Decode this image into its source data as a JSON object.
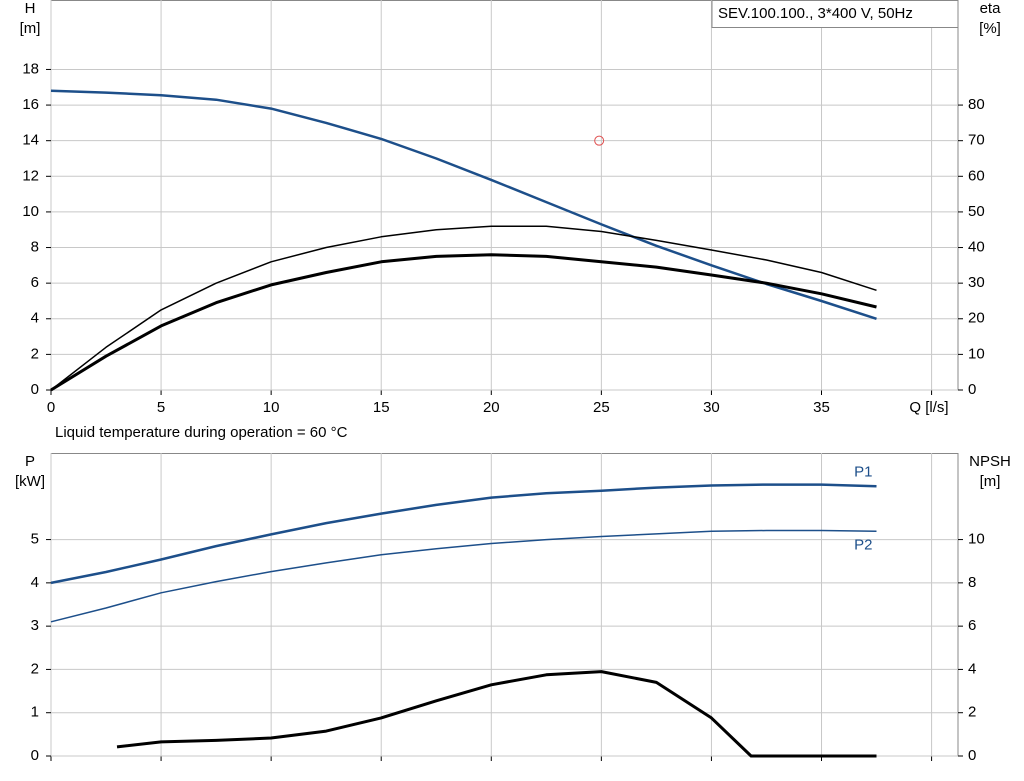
{
  "chart_data": [
    {
      "type": "line",
      "title": "SEV.100.100., 3*400 V, 50Hz",
      "x_label": "Q [l/s]",
      "y_label": "H",
      "y_unit": "[m]",
      "y2_label": "eta",
      "y2_unit": "[%]",
      "note": "Liquid temperature during operation = 60 °C",
      "x": [
        0,
        2.5,
        5,
        7.5,
        10,
        12.5,
        15,
        17.5,
        20,
        22.5,
        25,
        27.5,
        30,
        32.5,
        35,
        37.5
      ],
      "xlim": [
        0,
        41.2
      ],
      "xticks": [
        0,
        5,
        10,
        15,
        20,
        25,
        30,
        35,
        40
      ],
      "xtick_labels_shown": [
        0,
        5,
        10,
        15,
        20,
        25,
        30,
        35
      ],
      "ylim": [
        0,
        21.9
      ],
      "yticks": [
        0,
        2,
        4,
        6,
        8,
        10,
        12,
        14,
        16,
        18
      ],
      "y2lim": [
        0,
        109.5
      ],
      "y2ticks": [
        0,
        10,
        20,
        30,
        40,
        50,
        60,
        70,
        80
      ],
      "grid": true,
      "series": [
        {
          "color": "#1d4f8a",
          "line_width": 2.5,
          "values": [
            16.8,
            16.7,
            16.55,
            16.3,
            15.8,
            15.0,
            14.1,
            13.0,
            11.8,
            10.55,
            9.3,
            8.1,
            7.0,
            5.95,
            5.0,
            4.0
          ]
        },
        {
          "color": "#000000",
          "line_width": 1.5,
          "axis": "y2",
          "values": [
            0,
            12,
            22.5,
            30,
            36,
            40,
            43,
            45,
            46,
            46,
            44.5,
            42,
            39.3,
            36.5,
            33,
            28
          ]
        },
        {
          "color": "#000000",
          "line_width": 3,
          "axis": "y2",
          "values": [
            0,
            9.5,
            18,
            24.5,
            29.5,
            33,
            36,
            37.5,
            38,
            37.5,
            36,
            34.5,
            32.3,
            30,
            27,
            23.3
          ]
        }
      ],
      "marker": {
        "x": 24.9,
        "y": 14,
        "color": "#e05050"
      }
    },
    {
      "type": "line",
      "y_label": "P",
      "y_unit": "[kW]",
      "y2_label": "NPSH",
      "y2_unit": "[m]",
      "x": [
        0,
        2.5,
        5,
        7.5,
        10,
        12.5,
        15,
        17.5,
        20,
        22.5,
        25,
        27.5,
        30,
        32.5,
        35,
        37.5
      ],
      "xlim": [
        0,
        41.2
      ],
      "xticks": [
        0,
        5,
        10,
        15,
        20,
        25,
        30,
        35,
        40
      ],
      "ylim": [
        0,
        7
      ],
      "yticks": [
        0,
        1,
        2,
        3,
        4,
        5
      ],
      "y2lim": [
        0,
        14
      ],
      "y2ticks": [
        0,
        2,
        4,
        6,
        8,
        10
      ],
      "grid": true,
      "series": [
        {
          "name": "P1",
          "label_position": "above",
          "color": "#1d4f8a",
          "line_width": 2.5,
          "values": [
            4.0,
            4.25,
            4.54,
            4.85,
            5.12,
            5.38,
            5.6,
            5.8,
            5.97,
            6.07,
            6.13,
            6.2,
            6.25,
            6.27,
            6.27,
            6.23
          ]
        },
        {
          "name": "P2",
          "label_position": "below",
          "color": "#1d4f8a",
          "line_width": 1.5,
          "values": [
            3.1,
            3.42,
            3.77,
            4.03,
            4.26,
            4.46,
            4.65,
            4.79,
            4.91,
            5.0,
            5.07,
            5.13,
            5.19,
            5.21,
            5.21,
            5.19
          ]
        },
        {
          "color": "#000000",
          "line_width": 3,
          "axis": "y2",
          "x": [
            3,
            5,
            7.5,
            10,
            12.5,
            15,
            17.5,
            20,
            22.5,
            25,
            27.5,
            30,
            31.8,
            35,
            37.5
          ],
          "values": [
            0.42,
            0.65,
            0.72,
            0.83,
            1.15,
            1.76,
            2.55,
            3.29,
            3.75,
            3.9,
            3.4,
            1.76,
            0,
            0,
            0
          ]
        }
      ]
    }
  ]
}
